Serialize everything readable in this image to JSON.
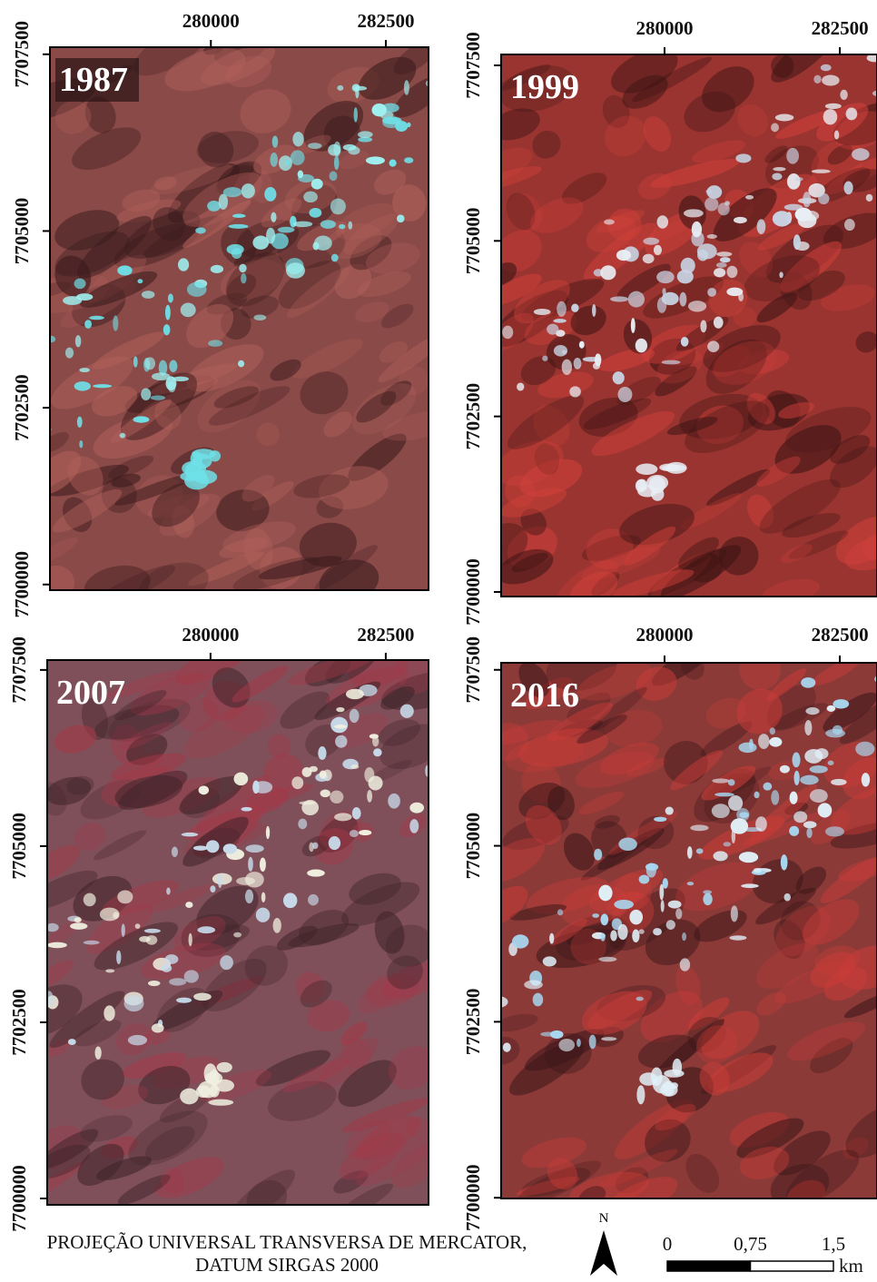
{
  "panels": [
    {
      "label": "1987",
      "xticks": [
        280000,
        282500
      ],
      "yticks": [
        7707500,
        7705000,
        7702500,
        7700000
      ],
      "xlim": [
        277700,
        283110
      ],
      "ylim": [
        7699920,
        7707600
      ]
    },
    {
      "label": "1999",
      "xticks": [
        280000,
        282500
      ],
      "yticks": [
        7707500,
        7705000,
        7702500,
        7700000
      ],
      "xlim": [
        277670,
        283030
      ],
      "ylim": [
        7699935,
        7707655
      ]
    },
    {
      "label": "2007",
      "xticks": [
        280000,
        282500
      ],
      "yticks": [
        7707500,
        7705000,
        7702500,
        7700000
      ],
      "xlim": [
        277670,
        283110
      ],
      "ylim": [
        7699910,
        7707640
      ]
    },
    {
      "label": "2016",
      "xticks": [
        280000,
        282500
      ],
      "yticks": [
        7707500,
        7705000,
        7702500,
        7700000
      ],
      "xlim": [
        277670,
        283030
      ],
      "ylim": [
        7699990,
        7707600
      ]
    }
  ],
  "footer": {
    "projection": [
      "PROJEÇÃO UNIVERSAL TRANSVERSA DE MERCATOR,",
      "DATUM SIRGAS 2000"
    ]
  },
  "north_arrow": "N",
  "scale_bar": {
    "ticks": [
      0,
      {
        "value": 0.75,
        "label": "0,75"
      },
      {
        "value": 1.5,
        "label": "1,5"
      }
    ],
    "unit": "km"
  }
}
